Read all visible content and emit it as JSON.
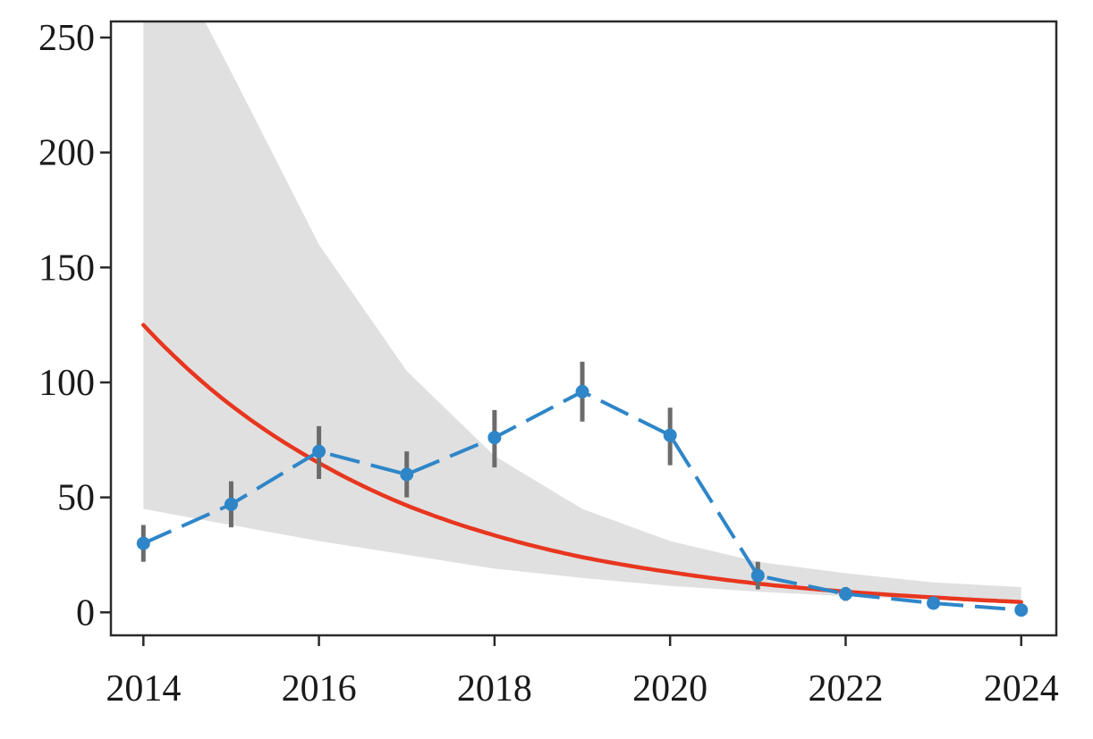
{
  "chart_data": {
    "type": "line",
    "title": "",
    "xlabel": "",
    "ylabel": "",
    "xlim": [
      2013.63,
      2024.4
    ],
    "ylim": [
      -10,
      257
    ],
    "x_ticks": [
      2014,
      2016,
      2018,
      2020,
      2022,
      2024
    ],
    "x_tick_labels": [
      "2014",
      "2016",
      "2018",
      "2020",
      "2022",
      "2024"
    ],
    "y_ticks": [
      0,
      50,
      100,
      150,
      200,
      250
    ],
    "y_tick_labels": [
      "0",
      "50",
      "100",
      "150",
      "200",
      "250"
    ],
    "grid": false,
    "legend": "none",
    "series": [
      {
        "kind": "observed",
        "color": "#2e86c8",
        "line_style": "dashed",
        "x": [
          2014,
          2015,
          2016,
          2017,
          2018,
          2019,
          2020,
          2021,
          2022,
          2023,
          2024
        ],
        "y": [
          30,
          47,
          70,
          60,
          76,
          96,
          77,
          16,
          8,
          4,
          1
        ],
        "error_low": [
          22,
          37,
          58,
          50,
          63,
          83,
          64,
          10,
          5,
          2,
          0
        ],
        "error_high": [
          38,
          57,
          81,
          70,
          88,
          109,
          89,
          22,
          11,
          6,
          2
        ],
        "error_color": "#6b6b6b"
      },
      {
        "kind": "fit",
        "color": "#e8361f",
        "line_style": "solid",
        "x": [
          2014,
          2015,
          2016,
          2017,
          2018,
          2019,
          2020,
          2021,
          2022,
          2023,
          2024
        ],
        "y": [
          125,
          90,
          65,
          46.5,
          33.5,
          24,
          17.5,
          12.5,
          9,
          6.5,
          4.5
        ]
      },
      {
        "kind": "confidence_band",
        "color": "#e0e0e0",
        "x": [
          2014,
          2014.7,
          2015,
          2016,
          2017,
          2018,
          2019,
          2020,
          2021,
          2022,
          2023,
          2024
        ],
        "upper": [
          257,
          257,
          235,
          160,
          105,
          68,
          45,
          31,
          22,
          17,
          13,
          11
        ],
        "lower": [
          45,
          40,
          38,
          31,
          25,
          19,
          15,
          11.5,
          9,
          7,
          5.5,
          4.5
        ]
      }
    ]
  }
}
